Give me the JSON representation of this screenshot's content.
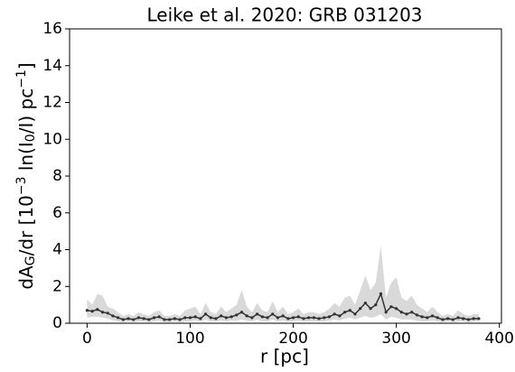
{
  "chart_data": {
    "type": "line",
    "title": "Leike et al. 2020: GRB 031203",
    "xlabel": "r [pc]",
    "ylabel_parts": [
      "dA",
      "G",
      "/dr [10",
      "−3",
      " ln(",
      "I",
      "0",
      "/",
      "I",
      ") pc",
      "−1",
      "]"
    ],
    "ylabel_styles": [
      "normal",
      "sub",
      "normal",
      "sup",
      "normal",
      "normal",
      "sub",
      "normal",
      "normal",
      "normal",
      "sup",
      "normal"
    ],
    "x": [
      0,
      5,
      10,
      15,
      20,
      25,
      30,
      35,
      40,
      45,
      50,
      55,
      60,
      65,
      70,
      75,
      80,
      85,
      90,
      95,
      100,
      105,
      110,
      115,
      120,
      125,
      130,
      135,
      140,
      145,
      150,
      155,
      160,
      165,
      170,
      175,
      180,
      185,
      190,
      195,
      200,
      205,
      210,
      215,
      220,
      225,
      230,
      235,
      240,
      245,
      250,
      255,
      260,
      265,
      270,
      275,
      280,
      285,
      290,
      295,
      300,
      305,
      310,
      315,
      320,
      325,
      330,
      335,
      340,
      345,
      350,
      355,
      360,
      365,
      370,
      375,
      380
    ],
    "values": [
      0.7,
      0.65,
      0.75,
      0.6,
      0.55,
      0.4,
      0.3,
      0.2,
      0.25,
      0.2,
      0.3,
      0.25,
      0.2,
      0.3,
      0.35,
      0.2,
      0.2,
      0.25,
      0.2,
      0.3,
      0.3,
      0.35,
      0.25,
      0.5,
      0.3,
      0.25,
      0.4,
      0.3,
      0.35,
      0.45,
      0.6,
      0.4,
      0.3,
      0.5,
      0.35,
      0.3,
      0.5,
      0.3,
      0.4,
      0.25,
      0.3,
      0.35,
      0.25,
      0.3,
      0.3,
      0.25,
      0.3,
      0.35,
      0.5,
      0.4,
      0.6,
      0.7,
      0.5,
      0.8,
      1.1,
      0.8,
      1.0,
      1.6,
      0.6,
      0.9,
      0.8,
      0.6,
      0.5,
      0.6,
      0.45,
      0.35,
      0.3,
      0.4,
      0.3,
      0.2,
      0.25,
      0.2,
      0.3,
      0.25,
      0.2,
      0.25,
      0.25
    ],
    "upper": [
      1.3,
      1.0,
      1.6,
      1.5,
      0.9,
      0.8,
      0.6,
      0.4,
      0.5,
      0.4,
      0.6,
      0.5,
      0.4,
      0.6,
      0.7,
      0.4,
      0.4,
      0.5,
      0.4,
      0.7,
      0.8,
      0.9,
      0.5,
      1.1,
      0.6,
      0.5,
      0.9,
      0.6,
      0.8,
      1.0,
      1.8,
      0.9,
      0.6,
      1.1,
      0.7,
      0.6,
      1.2,
      0.6,
      0.9,
      0.5,
      0.6,
      0.8,
      0.5,
      0.6,
      0.6,
      0.5,
      0.6,
      0.8,
      1.1,
      0.9,
      1.4,
      1.5,
      1.0,
      1.8,
      2.6,
      1.8,
      2.2,
      4.2,
      1.4,
      2.2,
      2.5,
      1.4,
      1.2,
      1.5,
      1.0,
      0.8,
      0.6,
      0.9,
      0.6,
      0.4,
      0.5,
      0.4,
      0.7,
      0.5,
      0.4,
      0.5,
      0.5
    ],
    "lower": [
      0.3,
      0.35,
      0.35,
      0.3,
      0.25,
      0.15,
      0.1,
      0.05,
      0.1,
      0.05,
      0.1,
      0.1,
      0.05,
      0.1,
      0.15,
      0.05,
      0.05,
      0.1,
      0.05,
      0.1,
      0.1,
      0.15,
      0.1,
      0.2,
      0.1,
      0.1,
      0.15,
      0.1,
      0.15,
      0.15,
      0.2,
      0.15,
      0.1,
      0.2,
      0.1,
      0.1,
      0.2,
      0.1,
      0.15,
      0.1,
      0.1,
      0.15,
      0.1,
      0.1,
      0.1,
      0.1,
      0.1,
      0.15,
      0.2,
      0.15,
      0.25,
      0.3,
      0.2,
      0.3,
      0.4,
      0.3,
      0.35,
      0.5,
      0.2,
      0.35,
      0.3,
      0.2,
      0.2,
      0.2,
      0.15,
      0.1,
      0.1,
      0.15,
      0.1,
      0.05,
      0.1,
      0.05,
      0.1,
      0.1,
      0.05,
      0.1,
      0.1
    ],
    "color": "#333333",
    "band_color": "#d9d9d9",
    "xlim": [
      -17,
      402
    ],
    "xticks": [
      0,
      100,
      200,
      300,
      400
    ],
    "ylim": [
      0,
      16
    ],
    "yticks": [
      0,
      2,
      4,
      6,
      8,
      10,
      12,
      14,
      16
    ]
  }
}
